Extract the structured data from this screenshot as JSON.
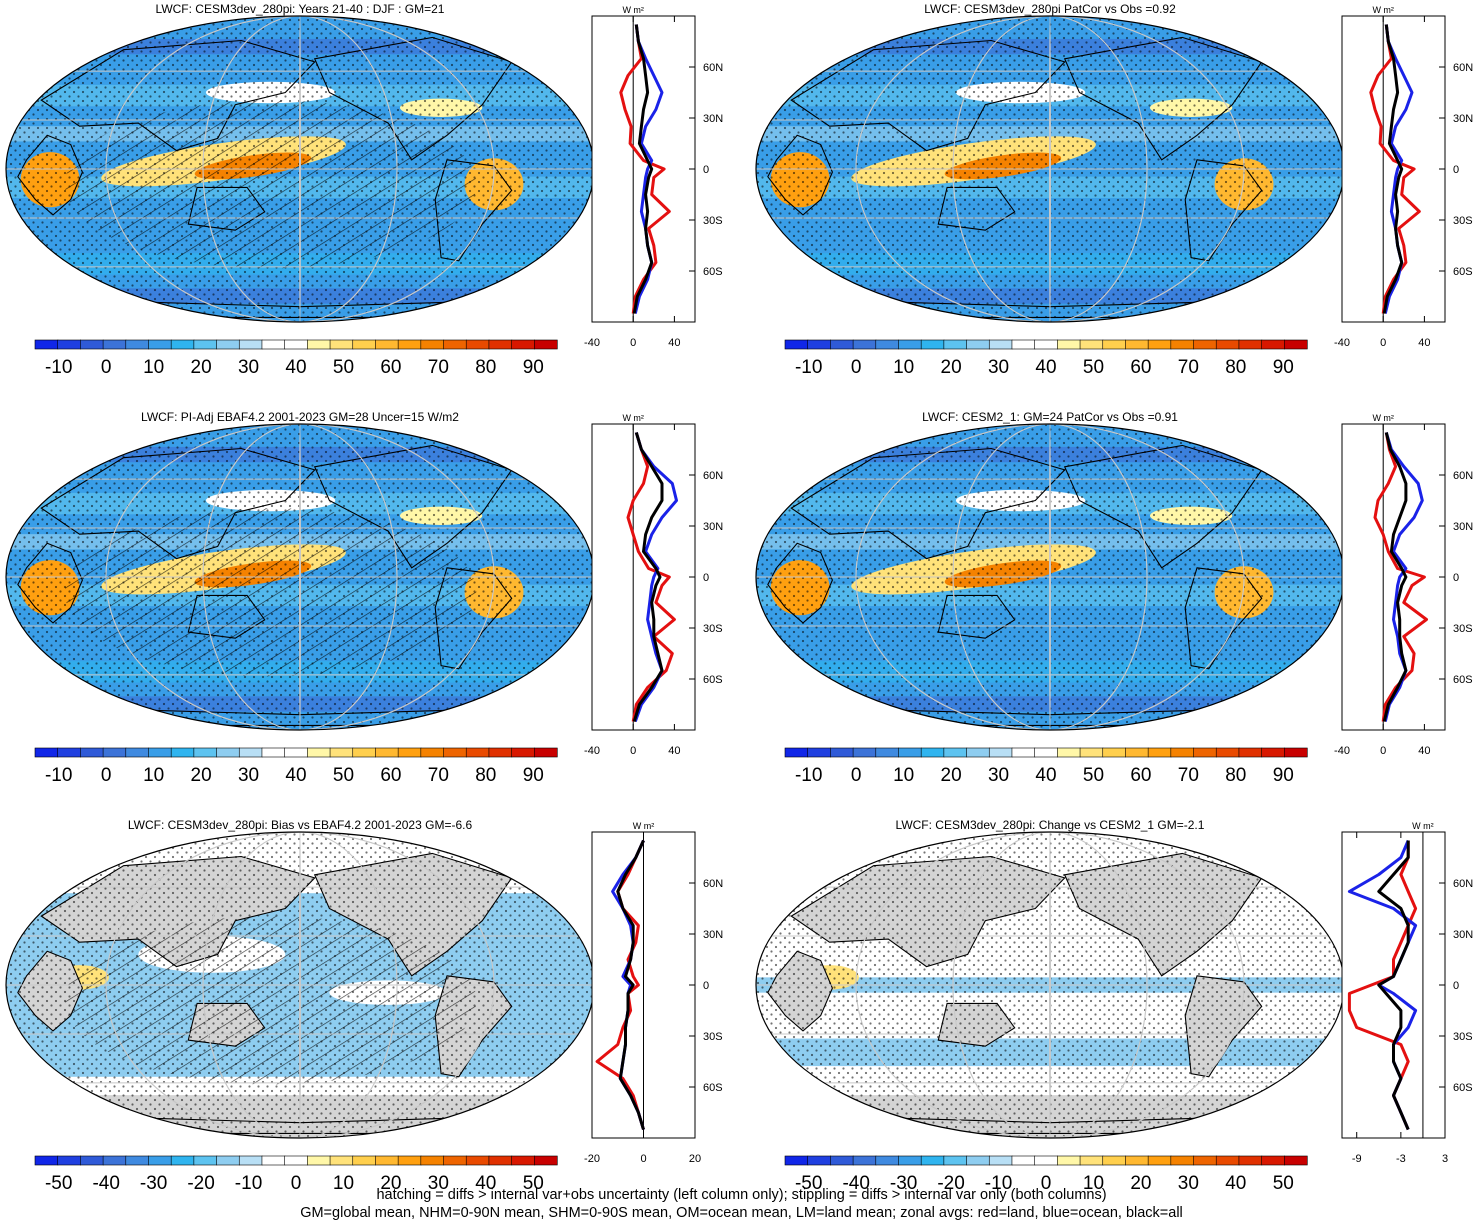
{
  "figure": {
    "footer_lines": [
      "hatching = diffs > internal var+obs uncertainty (left column only); stippling = diffs > internal var only (both columns)",
      "GM=global mean, NHM=0-90N mean, SHM=0-90S mean, OM=ocean mean, LM=land mean; zonal avgs: red=land, blue=ocean, black=all"
    ],
    "colors": {
      "land": "#e41010",
      "ocean": "#1a22e8",
      "all": "#000000",
      "missing": "#d4d4d4",
      "white_band": "#ffffff"
    },
    "colormap": [
      "#1026e8",
      "#1f3fe0",
      "#2f5ad8",
      "#3c73d8",
      "#3f8ae0",
      "#399ee8",
      "#2fb4ef",
      "#5dc3f0",
      "#8ecdf0",
      "#b8dff5",
      "#ffffff",
      "#ffffff",
      "#fff7a8",
      "#ffe27a",
      "#ffcf4d",
      "#ffb830",
      "#ffa010",
      "#f58200",
      "#ee6400",
      "#e94a00",
      "#e03000",
      "#d81800",
      "#c80000"
    ]
  },
  "chart_data": [
    {
      "type": "heatmap",
      "title": "LWCF: CESM3dev_280pi: Years 21-40 : DJF : GM=21",
      "colorbar_ticks": [
        "-10",
        "0",
        "10",
        "20",
        "30",
        "40",
        "50",
        "60",
        "70",
        "80",
        "90"
      ],
      "colorbar_range": [
        -15,
        95
      ],
      "hatching": true,
      "stippling": true,
      "gray_missing": false,
      "zonal_profile": {
        "units": "W m²",
        "xticks": [
          "-40",
          "0",
          "40"
        ],
        "xlim": [
          -40,
          60
        ],
        "ylabels": [
          "60N",
          "30N",
          "0",
          "30S",
          "60S"
        ],
        "lat": [
          85,
          75,
          65,
          55,
          45,
          35,
          25,
          15,
          5,
          0,
          -5,
          -15,
          -25,
          -35,
          -45,
          -55,
          -65,
          -75,
          -85
        ],
        "series": [
          {
            "name": "land",
            "values": [
              3,
              5,
              8,
              -5,
              -12,
              -8,
              -2,
              -3,
              10,
              30,
              20,
              18,
              35,
              15,
              20,
              22,
              10,
              2,
              0
            ]
          },
          {
            "name": "ocean",
            "values": [
              3,
              5,
              12,
              20,
              28,
              22,
              12,
              8,
              18,
              14,
              12,
              10,
              8,
              12,
              14,
              18,
              14,
              6,
              2
            ]
          },
          {
            "name": "all",
            "values": [
              3,
              5,
              10,
              12,
              14,
              10,
              8,
              6,
              14,
              18,
              15,
              12,
              14,
              12,
              14,
              18,
              12,
              4,
              1
            ]
          }
        ]
      }
    },
    {
      "type": "heatmap",
      "title": "LWCF: CESM3dev_280pi PatCor vs Obs =0.92",
      "colorbar_ticks": [
        "-10",
        "0",
        "10",
        "20",
        "30",
        "40",
        "50",
        "60",
        "70",
        "80",
        "90"
      ],
      "colorbar_range": [
        -15,
        95
      ],
      "hatching": false,
      "stippling": true,
      "gray_missing": false,
      "zonal_profile": {
        "units": "W m²",
        "xticks": [
          "-40",
          "0",
          "40"
        ],
        "xlim": [
          -40,
          60
        ],
        "ylabels": [
          "60N",
          "30N",
          "0",
          "30S",
          "60S"
        ],
        "lat": [
          85,
          75,
          65,
          55,
          45,
          35,
          25,
          15,
          5,
          0,
          -5,
          -15,
          -25,
          -35,
          -45,
          -55,
          -65,
          -75,
          -85
        ],
        "series": [
          {
            "name": "land",
            "values": [
              3,
              5,
              8,
              -5,
              -12,
              -8,
              -2,
              -3,
              10,
              30,
              20,
              18,
              35,
              15,
              20,
              22,
              10,
              2,
              0
            ]
          },
          {
            "name": "ocean",
            "values": [
              3,
              5,
              12,
              20,
              28,
              22,
              12,
              8,
              18,
              14,
              12,
              10,
              8,
              12,
              14,
              18,
              14,
              6,
              2
            ]
          },
          {
            "name": "all",
            "values": [
              3,
              5,
              10,
              12,
              14,
              10,
              8,
              6,
              14,
              18,
              15,
              12,
              14,
              12,
              14,
              18,
              12,
              4,
              1
            ]
          }
        ]
      }
    },
    {
      "type": "heatmap",
      "title": "LWCF: PI-Adj EBAF4.2 2001-2023 GM=28 Uncer=15 W/m2",
      "colorbar_ticks": [
        "-10",
        "0",
        "10",
        "20",
        "30",
        "40",
        "50",
        "60",
        "70",
        "80",
        "90"
      ],
      "colorbar_range": [
        -15,
        95
      ],
      "hatching": true,
      "stippling": true,
      "gray_missing": false,
      "zonal_profile": {
        "units": "W m²",
        "xticks": [
          "-40",
          "0",
          "40"
        ],
        "xlim": [
          -40,
          60
        ],
        "ylabels": [
          "60N",
          "30N",
          "0",
          "30S",
          "60S"
        ],
        "lat": [
          85,
          75,
          65,
          55,
          45,
          35,
          25,
          15,
          5,
          0,
          -5,
          -15,
          -25,
          -35,
          -45,
          -55,
          -65,
          -75,
          -85
        ],
        "series": [
          {
            "name": "land",
            "values": [
              3,
              8,
              14,
              10,
              0,
              -5,
              0,
              5,
              15,
              35,
              28,
              22,
              40,
              20,
              38,
              32,
              14,
              3,
              0
            ]
          },
          {
            "name": "ocean",
            "values": [
              3,
              8,
              20,
              38,
              42,
              28,
              18,
              12,
              24,
              20,
              18,
              16,
              14,
              18,
              22,
              28,
              20,
              8,
              2
            ]
          },
          {
            "name": "all",
            "values": [
              3,
              8,
              18,
              28,
              28,
              18,
              12,
              10,
              22,
              26,
              22,
              18,
              20,
              20,
              24,
              28,
              18,
              6,
              1
            ]
          }
        ]
      }
    },
    {
      "type": "heatmap",
      "title": "LWCF: CESM2_1: GM=24 PatCor vs Obs =0.91",
      "colorbar_ticks": [
        "-10",
        "0",
        "10",
        "20",
        "30",
        "40",
        "50",
        "60",
        "70",
        "80",
        "90"
      ],
      "colorbar_range": [
        -15,
        95
      ],
      "hatching": false,
      "stippling": true,
      "gray_missing": false,
      "zonal_profile": {
        "units": "W m²",
        "xticks": [
          "-40",
          "0",
          "40"
        ],
        "xlim": [
          -40,
          60
        ],
        "ylabels": [
          "60N",
          "30N",
          "0",
          "30S",
          "60S"
        ],
        "lat": [
          85,
          75,
          65,
          55,
          45,
          35,
          25,
          15,
          5,
          0,
          -5,
          -15,
          -25,
          -35,
          -45,
          -55,
          -65,
          -75,
          -85
        ],
        "series": [
          {
            "name": "land",
            "values": [
              3,
              6,
              12,
              5,
              -5,
              -8,
              0,
              5,
              14,
              40,
              28,
              20,
              42,
              20,
              30,
              28,
              12,
              2,
              0
            ]
          },
          {
            "name": "ocean",
            "values": [
              3,
              8,
              20,
              34,
              38,
              30,
              16,
              10,
              22,
              16,
              14,
              12,
              10,
              14,
              16,
              22,
              16,
              6,
              2
            ]
          },
          {
            "name": "all",
            "values": [
              3,
              7,
              16,
              22,
              22,
              16,
              10,
              8,
              18,
              22,
              18,
              14,
              16,
              16,
              18,
              22,
              14,
              5,
              1
            ]
          }
        ]
      }
    },
    {
      "type": "heatmap",
      "title": "LWCF: CESM3dev_280pi: Bias vs EBAF4.2 2001-2023 GM=-6.6",
      "colorbar_ticks": [
        "-50",
        "-40",
        "-30",
        "-20",
        "-10",
        "0",
        "10",
        "20",
        "30",
        "40",
        "50"
      ],
      "colorbar_range": [
        -55,
        55
      ],
      "hatching": true,
      "stippling": true,
      "gray_missing": true,
      "zonal_profile": {
        "units": "W m²",
        "xticks": [
          "-20",
          "0",
          "20"
        ],
        "xlim": [
          -20,
          20
        ],
        "ylabels": [
          "60N",
          "30N",
          "0",
          "30S",
          "60S"
        ],
        "lat": [
          85,
          75,
          65,
          55,
          45,
          35,
          25,
          15,
          5,
          0,
          -5,
          -15,
          -25,
          -35,
          -45,
          -55,
          -65,
          -75,
          -85
        ],
        "series": [
          {
            "name": "land",
            "values": [
              0,
              -3,
              -6,
              -10,
              -8,
              -2,
              -3,
              -6,
              -4,
              -2,
              -6,
              -5,
              -8,
              -10,
              -18,
              -8,
              -4,
              -2,
              0
            ]
          },
          {
            "name": "ocean",
            "values": [
              0,
              -3,
              -8,
              -12,
              -8,
              -5,
              -4,
              -5,
              -8,
              -5,
              -6,
              -6,
              -7,
              -7,
              -8,
              -9,
              -5,
              -2,
              0
            ]
          },
          {
            "name": "all",
            "values": [
              0,
              -3,
              -7,
              -10,
              -8,
              -4,
              -4,
              -5,
              -7,
              -4,
              -6,
              -6,
              -7,
              -7,
              -8,
              -9,
              -5,
              -2,
              0
            ]
          }
        ]
      }
    },
    {
      "type": "heatmap",
      "title": "LWCF: CESM3dev_280pi: Change vs CESM2_1 GM=-2.1",
      "colorbar_ticks": [
        "-50",
        "-40",
        "-30",
        "-20",
        "-10",
        "0",
        "10",
        "20",
        "30",
        "40",
        "50"
      ],
      "colorbar_range": [
        -55,
        55
      ],
      "hatching": false,
      "stippling": true,
      "gray_missing": true,
      "zonal_profile": {
        "units": "W m²",
        "xticks": [
          "-9",
          "-3",
          "3"
        ],
        "xlim": [
          -11,
          3
        ],
        "ylabels": [
          "60N",
          "30N",
          "0",
          "30S",
          "60S"
        ],
        "lat": [
          85,
          75,
          65,
          55,
          45,
          35,
          25,
          15,
          5,
          0,
          -5,
          -15,
          -25,
          -35,
          -45,
          -55,
          -65,
          -75,
          -85
        ],
        "series": [
          {
            "name": "land",
            "values": [
              -2,
              -2,
              -3,
              -2,
              -1,
              -2,
              -3,
              -4,
              -4,
              -7,
              -10,
              -10,
              -9,
              -3,
              -2,
              -3,
              -4,
              -3,
              -2
            ]
          },
          {
            "name": "ocean",
            "values": [
              -2,
              -3,
              -6,
              -10,
              -4,
              -1,
              -2,
              -3,
              -4,
              -6,
              -4,
              -1,
              -2,
              -4,
              -4,
              -3,
              -4,
              -3,
              -2
            ]
          },
          {
            "name": "all",
            "values": [
              -2,
              -2,
              -4,
              -6,
              -3,
              -2,
              -2,
              -3,
              -4,
              -6,
              -5,
              -3,
              -3,
              -4,
              -4,
              -3,
              -4,
              -3,
              -2
            ]
          }
        ]
      }
    }
  ]
}
